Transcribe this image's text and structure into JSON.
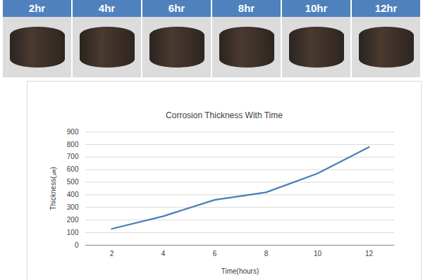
{
  "header": {
    "labels": [
      "2hr",
      "4hr",
      "6hr",
      "8hr",
      "10hr",
      "12hr"
    ]
  },
  "chart_data": {
    "type": "line",
    "title": "Corrosion Thickness With Time",
    "x_label": "Time(hours)",
    "y_label": "Thickness(㎛)",
    "categories": [
      "2",
      "4",
      "6",
      "8",
      "10",
      "12"
    ],
    "values": [
      130,
      230,
      360,
      420,
      570,
      780
    ],
    "color": "#4a7ebb",
    "ylim": [
      0,
      900
    ],
    "yticks": [
      0,
      100,
      200,
      300,
      400,
      500,
      600,
      700,
      800,
      900
    ],
    "grid": true
  }
}
